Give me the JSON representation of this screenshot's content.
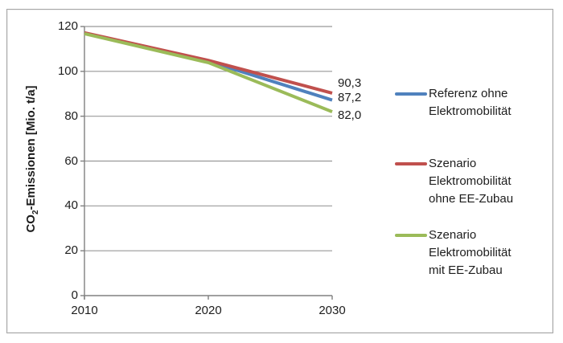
{
  "figure": {
    "background": "#ffffff",
    "border_color": "#a6a6a6"
  },
  "chart_data": {
    "type": "line",
    "title": "",
    "xlabel": "",
    "ylabel": "CO2-Emissionen [Mio. t/a]",
    "ylabel_parts": {
      "prefix": "CO",
      "subscript": "2",
      "suffix": "-Emissionen [Mio. t/a]"
    },
    "x": [
      2010,
      2020,
      2030
    ],
    "x_tick_labels": [
      "2010",
      "2020",
      "2030"
    ],
    "y_ticks": [
      0,
      20,
      40,
      60,
      80,
      100,
      120
    ],
    "ylim": [
      0,
      120
    ],
    "grid": "horizontal-gray",
    "legend_position": "right",
    "axis_color": "#808080",
    "grid_color": "#999999",
    "series": [
      {
        "name": "Referenz ohne Elektromobilität",
        "legend_lines": [
          "Referenz ohne",
          "Elektromobilität"
        ],
        "color": "#4F81BD",
        "values": [
          117,
          104.5,
          87.2
        ],
        "end_label": "87,2"
      },
      {
        "name": "Szenario Elektromobilität ohne EE-Zubau",
        "legend_lines": [
          "Szenario",
          "Elektromobilität",
          "ohne EE-Zubau"
        ],
        "color": "#C0504D",
        "values": [
          117.2,
          104.9,
          90.3
        ],
        "end_label": "90,3"
      },
      {
        "name": "Szenario Elektromobilität mit EE-Zubau",
        "legend_lines": [
          "Szenario",
          "Elektromobilität",
          "mit EE-Zubau"
        ],
        "color": "#9BBB59",
        "values": [
          116.8,
          103.9,
          82.0
        ],
        "end_label": "82,0"
      }
    ]
  }
}
